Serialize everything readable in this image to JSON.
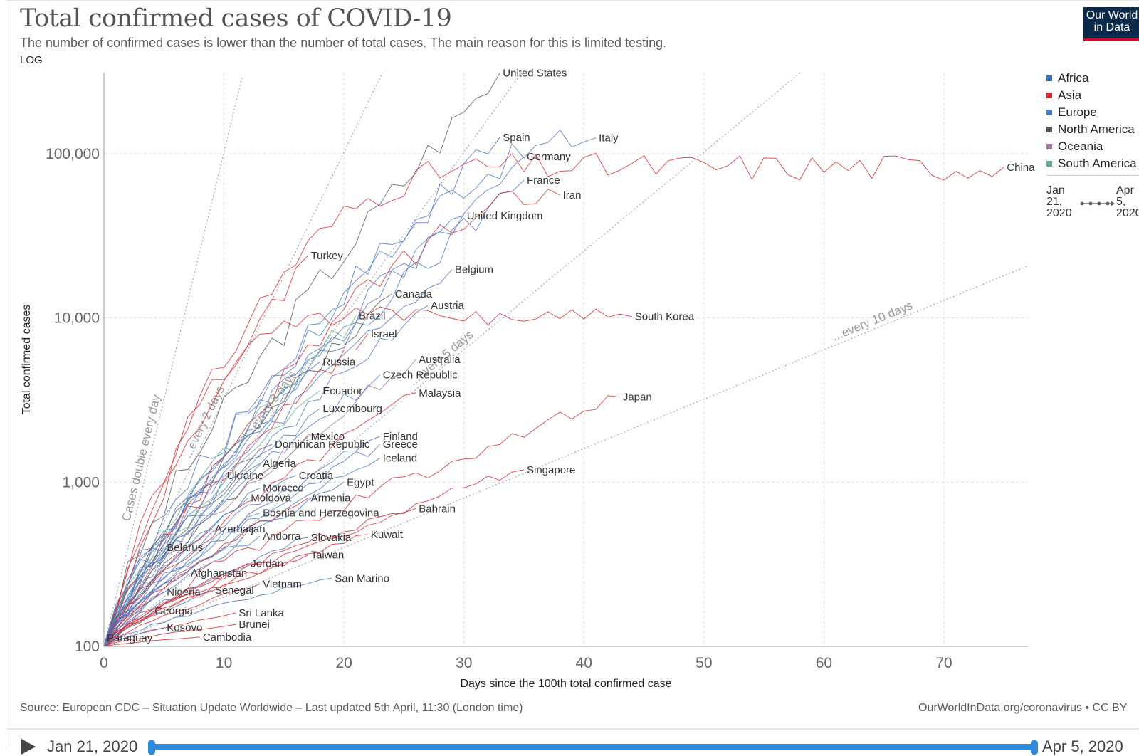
{
  "header": {
    "title": "Total confirmed cases of COVID-19",
    "subtitle": "The number of confirmed cases is lower than the number of total cases. The main reason for this is limited testing.",
    "scale_toggle": "LOG",
    "logo_line1": "Our World",
    "logo_line2": "in Data"
  },
  "legend": {
    "items": [
      {
        "label": "Africa",
        "color": "#3d6fb6"
      },
      {
        "label": "Asia",
        "color": "#d6282c"
      },
      {
        "label": "Europe",
        "color": "#4a73c4"
      },
      {
        "label": "North America",
        "color": "#555555"
      },
      {
        "label": "Oceania",
        "color": "#a2729e"
      },
      {
        "label": "South America",
        "color": "#5faa86"
      }
    ],
    "time_start": "Jan 21, 2020",
    "time_end": "Apr 5, 2020"
  },
  "footer": {
    "source": "Source: European CDC – Situation Update Worldwide – Last updated 5th April, 11:30 (London time)",
    "url": "OurWorldInData.org/coronavirus • CC BY",
    "start_date": "Jan 21, 2020",
    "end_date": "Apr 5, 2020"
  },
  "chart_data": {
    "type": "line",
    "title": "Total confirmed cases of COVID-19",
    "xlabel": "Days since the 100th total confirmed case",
    "ylabel": "Total confirmed cases",
    "xlim": [
      0,
      77
    ],
    "ylim": [
      100,
      300000
    ],
    "yscale": "log",
    "x_ticks": [
      0,
      10,
      20,
      30,
      40,
      50,
      60,
      70
    ],
    "y_ticks": [
      {
        "v": 100,
        "label": "100"
      },
      {
        "v": 1000,
        "label": "1,000"
      },
      {
        "v": 10000,
        "label": "10,000"
      },
      {
        "v": 100000,
        "label": "100,000"
      }
    ],
    "reference_lines": [
      {
        "label": "Cases double every day",
        "doubling": 1
      },
      {
        "label": "...every 2 days",
        "doubling": 2
      },
      {
        "label": "...every 3 days",
        "doubling": 3
      },
      {
        "label": "...every 5 days",
        "doubling": 5
      },
      {
        "label": "...every 10 days",
        "doubling": 10
      }
    ],
    "series": [
      {
        "name": "United States",
        "continent": "North America",
        "x": 33,
        "y": 311000
      },
      {
        "name": "Spain",
        "continent": "Europe",
        "x": 33,
        "y": 126000
      },
      {
        "name": "Italy",
        "continent": "Europe",
        "x": 41,
        "y": 125000
      },
      {
        "name": "Germany",
        "continent": "Europe",
        "x": 35,
        "y": 96000
      },
      {
        "name": "China",
        "continent": "Asia",
        "x": 75,
        "y": 82900
      },
      {
        "name": "France",
        "continent": "Europe",
        "x": 35,
        "y": 69000
      },
      {
        "name": "Iran",
        "continent": "Asia",
        "x": 38,
        "y": 56000
      },
      {
        "name": "United Kingdom",
        "continent": "Europe",
        "x": 30,
        "y": 42000
      },
      {
        "name": "Turkey",
        "continent": "Asia",
        "x": 17,
        "y": 24000
      },
      {
        "name": "Belgium",
        "continent": "Europe",
        "x": 29,
        "y": 19700
      },
      {
        "name": "Canada",
        "continent": "North America",
        "x": 24,
        "y": 14000
      },
      {
        "name": "Austria",
        "continent": "Europe",
        "x": 27,
        "y": 11900
      },
      {
        "name": "Brazil",
        "continent": "South America",
        "x": 21,
        "y": 10300
      },
      {
        "name": "South Korea",
        "continent": "Asia",
        "x": 44,
        "y": 10200
      },
      {
        "name": "Israel",
        "continent": "Asia",
        "x": 22,
        "y": 8000
      },
      {
        "name": "Australia",
        "continent": "Oceania",
        "x": 26,
        "y": 5600
      },
      {
        "name": "Russia",
        "continent": "Europe",
        "x": 18,
        "y": 5400
      },
      {
        "name": "Czech Republic",
        "continent": "Europe",
        "x": 23,
        "y": 4500
      },
      {
        "name": "Ecuador",
        "continent": "South America",
        "x": 18,
        "y": 3600
      },
      {
        "name": "Malaysia",
        "continent": "Asia",
        "x": 26,
        "y": 3500
      },
      {
        "name": "Japan",
        "continent": "Asia",
        "x": 43,
        "y": 3300
      },
      {
        "name": "Luxembourg",
        "continent": "Europe",
        "x": 18,
        "y": 2800
      },
      {
        "name": "Finland",
        "continent": "Europe",
        "x": 23,
        "y": 1900
      },
      {
        "name": "Mexico",
        "continent": "North America",
        "x": 17,
        "y": 1900
      },
      {
        "name": "Greece",
        "continent": "Europe",
        "x": 23,
        "y": 1700
      },
      {
        "name": "Dominican Republic",
        "continent": "North America",
        "x": 14,
        "y": 1700
      },
      {
        "name": "Iceland",
        "continent": "Europe",
        "x": 23,
        "y": 1400
      },
      {
        "name": "Algeria",
        "continent": "Africa",
        "x": 13,
        "y": 1300
      },
      {
        "name": "Singapore",
        "continent": "Asia",
        "x": 35,
        "y": 1190
      },
      {
        "name": "Croatia",
        "continent": "Europe",
        "x": 16,
        "y": 1100
      },
      {
        "name": "Ukraine",
        "continent": "Europe",
        "x": 10,
        "y": 1100
      },
      {
        "name": "Egypt",
        "continent": "Africa",
        "x": 20,
        "y": 1000
      },
      {
        "name": "Morocco",
        "continent": "Africa",
        "x": 13,
        "y": 920
      },
      {
        "name": "Moldova",
        "continent": "Europe",
        "x": 12,
        "y": 800
      },
      {
        "name": "Armenia",
        "continent": "Asia",
        "x": 17,
        "y": 800
      },
      {
        "name": "Bahrain",
        "continent": "Asia",
        "x": 26,
        "y": 690
      },
      {
        "name": "Bosnia and Herzegovina",
        "continent": "Europe",
        "x": 13,
        "y": 650
      },
      {
        "name": "Azerbaijan",
        "continent": "Asia",
        "x": 9,
        "y": 520
      },
      {
        "name": "Kuwait",
        "continent": "Asia",
        "x": 22,
        "y": 480
      },
      {
        "name": "Andorra",
        "continent": "Europe",
        "x": 13,
        "y": 470
      },
      {
        "name": "Slovakia",
        "continent": "Europe",
        "x": 17,
        "y": 460
      },
      {
        "name": "Belarus",
        "continent": "Europe",
        "x": 5,
        "y": 400
      },
      {
        "name": "Taiwan",
        "continent": "Asia",
        "x": 17,
        "y": 360
      },
      {
        "name": "Jordan",
        "continent": "Asia",
        "x": 12,
        "y": 320
      },
      {
        "name": "Afghanistan",
        "continent": "Asia",
        "x": 7,
        "y": 280
      },
      {
        "name": "San Marino",
        "continent": "Europe",
        "x": 19,
        "y": 260
      },
      {
        "name": "Vietnam",
        "continent": "Asia",
        "x": 13,
        "y": 240
      },
      {
        "name": "Senegal",
        "continent": "Africa",
        "x": 9,
        "y": 220
      },
      {
        "name": "Nigeria",
        "continent": "Africa",
        "x": 5,
        "y": 215
      },
      {
        "name": "Georgia",
        "continent": "Asia",
        "x": 4,
        "y": 165
      },
      {
        "name": "Sri Lanka",
        "continent": "Asia",
        "x": 11,
        "y": 160
      },
      {
        "name": "Brunei",
        "continent": "Asia",
        "x": 11,
        "y": 136
      },
      {
        "name": "Kosovo",
        "continent": "Europe",
        "x": 5,
        "y": 130
      },
      {
        "name": "Cambodia",
        "continent": "Asia",
        "x": 8,
        "y": 114
      },
      {
        "name": "Paraguay",
        "continent": "South America",
        "x": 0,
        "y": 113
      }
    ]
  }
}
